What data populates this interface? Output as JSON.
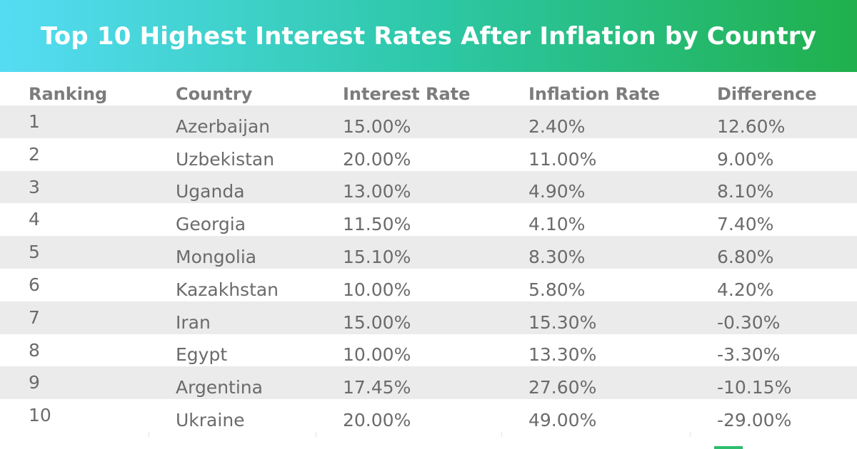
{
  "title": "Top 10 Highest Interest Rates After Inflation by Country",
  "colors": {
    "banner_start": "#55dcf4",
    "banner_end": "#20b04c",
    "row_shade": "#ebebeb",
    "text": "#6b6b6b"
  },
  "chart_data": {
    "type": "table",
    "title": "Top 10 Highest Interest Rates After Inflation by Country",
    "columns": [
      "Ranking",
      "Country",
      "Interest Rate",
      "Inflation Rate",
      "Difference"
    ],
    "rows": [
      [
        "1",
        "Azerbaijan",
        "15.00%",
        "2.40%",
        "12.60%"
      ],
      [
        "2",
        "Uzbekistan",
        "20.00%",
        "11.00%",
        "9.00%"
      ],
      [
        "3",
        "Uganda",
        "13.00%",
        "4.90%",
        "8.10%"
      ],
      [
        "4",
        "Georgia",
        "11.50%",
        "4.10%",
        "7.40%"
      ],
      [
        "5",
        "Mongolia",
        "15.10%",
        "8.30%",
        "6.80%"
      ],
      [
        "6",
        "Kazakhstan",
        "10.00%",
        "5.80%",
        "4.20%"
      ],
      [
        "7",
        "Iran",
        "15.00%",
        "15.30%",
        "-0.30%"
      ],
      [
        "8",
        "Egypt",
        "10.00%",
        "13.30%",
        "-3.30%"
      ],
      [
        "9",
        "Argentina",
        "17.45%",
        "27.60%",
        "-10.15%"
      ],
      [
        "10",
        "Ukraine",
        "20.00%",
        "49.00%",
        "-29.00%"
      ]
    ]
  }
}
